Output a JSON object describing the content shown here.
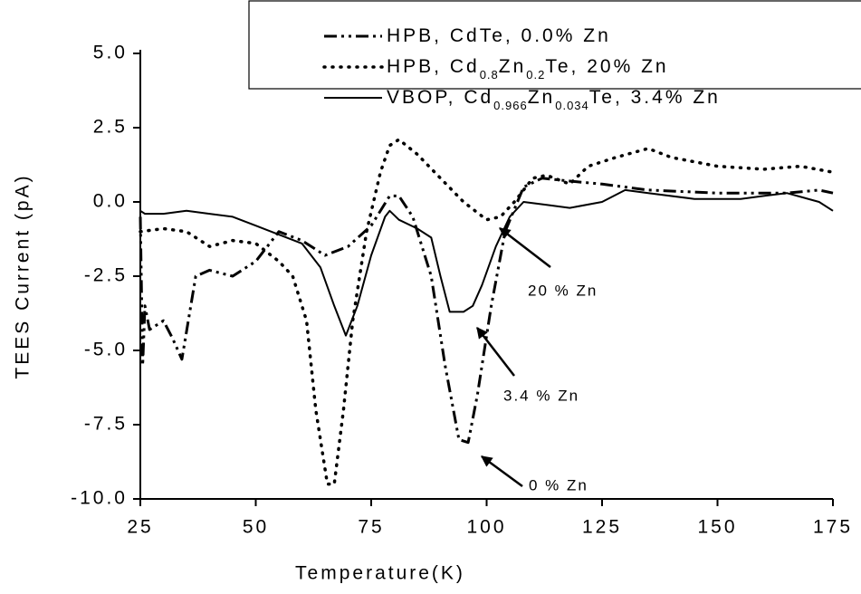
{
  "chart_data": {
    "type": "line",
    "x_label": "Temperature(K)",
    "y_label": "TEES Current (pA)",
    "xlim": [
      25,
      175
    ],
    "ylim": [
      -10,
      5
    ],
    "xticks": [
      25,
      50,
      75,
      100,
      125,
      150,
      175
    ],
    "yticks": [
      {
        "value": 5,
        "label": "5.0"
      },
      {
        "value": 2.5,
        "label": "2.5"
      },
      {
        "value": 0,
        "label": "0.0"
      },
      {
        "value": -2.5,
        "label": "-2.5"
      },
      {
        "value": -5,
        "label": "-5.0"
      },
      {
        "value": -7.5,
        "label": "-7.5"
      },
      {
        "value": -10,
        "label": "-10.0"
      }
    ],
    "series": [
      {
        "name": [
          "HPB, CdTe, 0.0% Zn"
        ],
        "color": "#000000",
        "style": "dashdotdot",
        "x": [
          25,
          25.5,
          26,
          27,
          30,
          32,
          34,
          37,
          40,
          45,
          50,
          55,
          60,
          65,
          70,
          75,
          79,
          81,
          84,
          88,
          91,
          94,
          96,
          98,
          101,
          104,
          108,
          112,
          118,
          125,
          135,
          150,
          165,
          172,
          175
        ],
        "values": [
          -0.5,
          -5.5,
          -3.5,
          -4.3,
          -4.0,
          -4.6,
          -5.3,
          -2.5,
          -2.3,
          -2.5,
          -2.0,
          -1.0,
          -1.3,
          -1.8,
          -1.5,
          -0.8,
          0.2,
          0.2,
          -0.5,
          -2.5,
          -5.5,
          -8.0,
          -8.1,
          -6.5,
          -3.5,
          -1.0,
          0.5,
          0.8,
          0.7,
          0.6,
          0.4,
          0.3,
          0.3,
          0.4,
          0.3
        ]
      },
      {
        "name": [
          "HPB, Cd",
          "0.8",
          "Zn",
          "0.2",
          "Te,  20%  Zn"
        ],
        "color": "#000000",
        "style": "dotted",
        "x": [
          25,
          30,
          35,
          40,
          45,
          50,
          55,
          58,
          61,
          63,
          65.5,
          67,
          69,
          71,
          74,
          77,
          79,
          81,
          85,
          90,
          95,
          100,
          103,
          106,
          110,
          113,
          118,
          122,
          128,
          135,
          140,
          150,
          160,
          168,
          175
        ],
        "values": [
          -1.0,
          -0.9,
          -1.0,
          -1.5,
          -1.3,
          -1.4,
          -2.0,
          -2.5,
          -4.0,
          -7.0,
          -9.5,
          -9.5,
          -7.0,
          -4.0,
          -1.0,
          1.0,
          1.9,
          2.1,
          1.6,
          0.8,
          0.0,
          -0.6,
          -0.5,
          0.0,
          0.8,
          0.9,
          0.6,
          1.2,
          1.5,
          1.8,
          1.5,
          1.2,
          1.1,
          1.2,
          1.0
        ]
      },
      {
        "name": [
          "VBOP, Cd",
          "0.966",
          "Zn",
          "0.034",
          "Te, 3.4% Zn"
        ],
        "color": "#000000",
        "style": "solid",
        "x": [
          25,
          26,
          30,
          35,
          40,
          45,
          50,
          55,
          60,
          64,
          67,
          69.5,
          72,
          75,
          78,
          79,
          81,
          85,
          88,
          90,
          92,
          95,
          97,
          99,
          102,
          105,
          108,
          113,
          118,
          125,
          130,
          135,
          145,
          155,
          160,
          165,
          172,
          175
        ],
        "values": [
          -0.3,
          -0.4,
          -0.4,
          -0.3,
          -0.4,
          -0.5,
          -0.8,
          -1.1,
          -1.4,
          -2.2,
          -3.5,
          -4.5,
          -3.5,
          -1.8,
          -0.5,
          -0.3,
          -0.6,
          -0.9,
          -1.2,
          -2.5,
          -3.7,
          -3.7,
          -3.5,
          -2.8,
          -1.5,
          -0.5,
          0.0,
          -0.1,
          -0.2,
          0.0,
          0.4,
          0.3,
          0.1,
          0.1,
          0.2,
          0.3,
          0.0,
          -0.3
        ]
      }
    ],
    "annotations": [
      "20 % Zn",
      "3.4 % Zn",
      "0 % Zn"
    ]
  }
}
